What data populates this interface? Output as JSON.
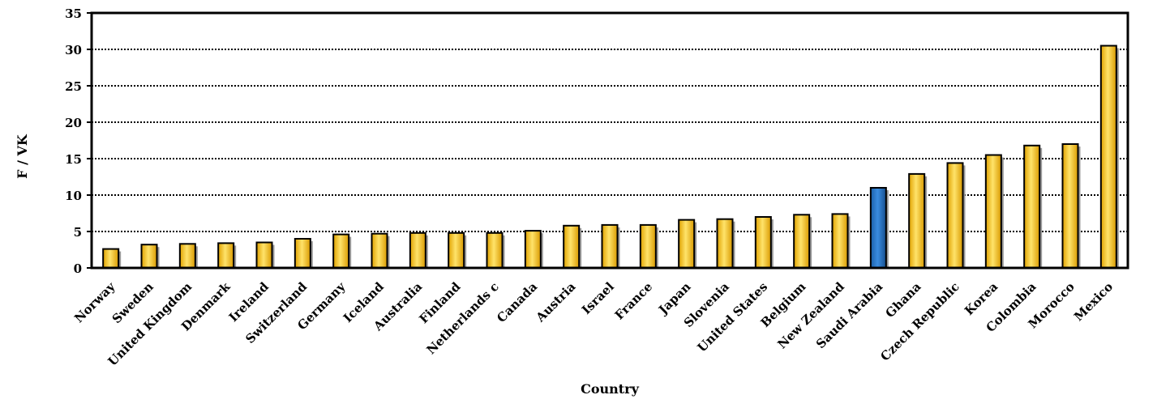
{
  "chart_data": {
    "type": "bar",
    "title": "",
    "xlabel": "Country",
    "ylabel": "F / VK",
    "ylim": [
      0,
      35
    ],
    "yticks": [
      0,
      5,
      10,
      15,
      20,
      25,
      30,
      35
    ],
    "grid": "horizontal dotted",
    "legend": "none",
    "categories": [
      "Norway",
      "Sweden",
      "United Kingdom",
      "Denmark",
      "Ireland",
      "Switzerland",
      "Germany",
      "Iceland",
      "Australia",
      "Finland",
      "Netherlands c",
      "Canada",
      "Austria",
      "Israel",
      "France",
      "Japan",
      "Slovenia",
      "United States",
      "Belgium",
      "New Zealand",
      "Saudi Arabia",
      "Ghana",
      "Czech Republic",
      "Korea",
      "Colombia",
      "Morocco",
      "Mexico"
    ],
    "values": [
      2.6,
      3.2,
      3.3,
      3.4,
      3.5,
      4.0,
      4.6,
      4.7,
      4.8,
      4.8,
      4.8,
      5.1,
      5.8,
      5.9,
      5.9,
      6.6,
      6.7,
      7.0,
      7.3,
      7.4,
      11.0,
      12.9,
      14.4,
      15.5,
      16.8,
      17.0,
      30.5
    ],
    "colors": {
      "default": "#FFC000",
      "highlight": "#1F6FC4",
      "highlight_category": "Saudi Arabia"
    }
  }
}
